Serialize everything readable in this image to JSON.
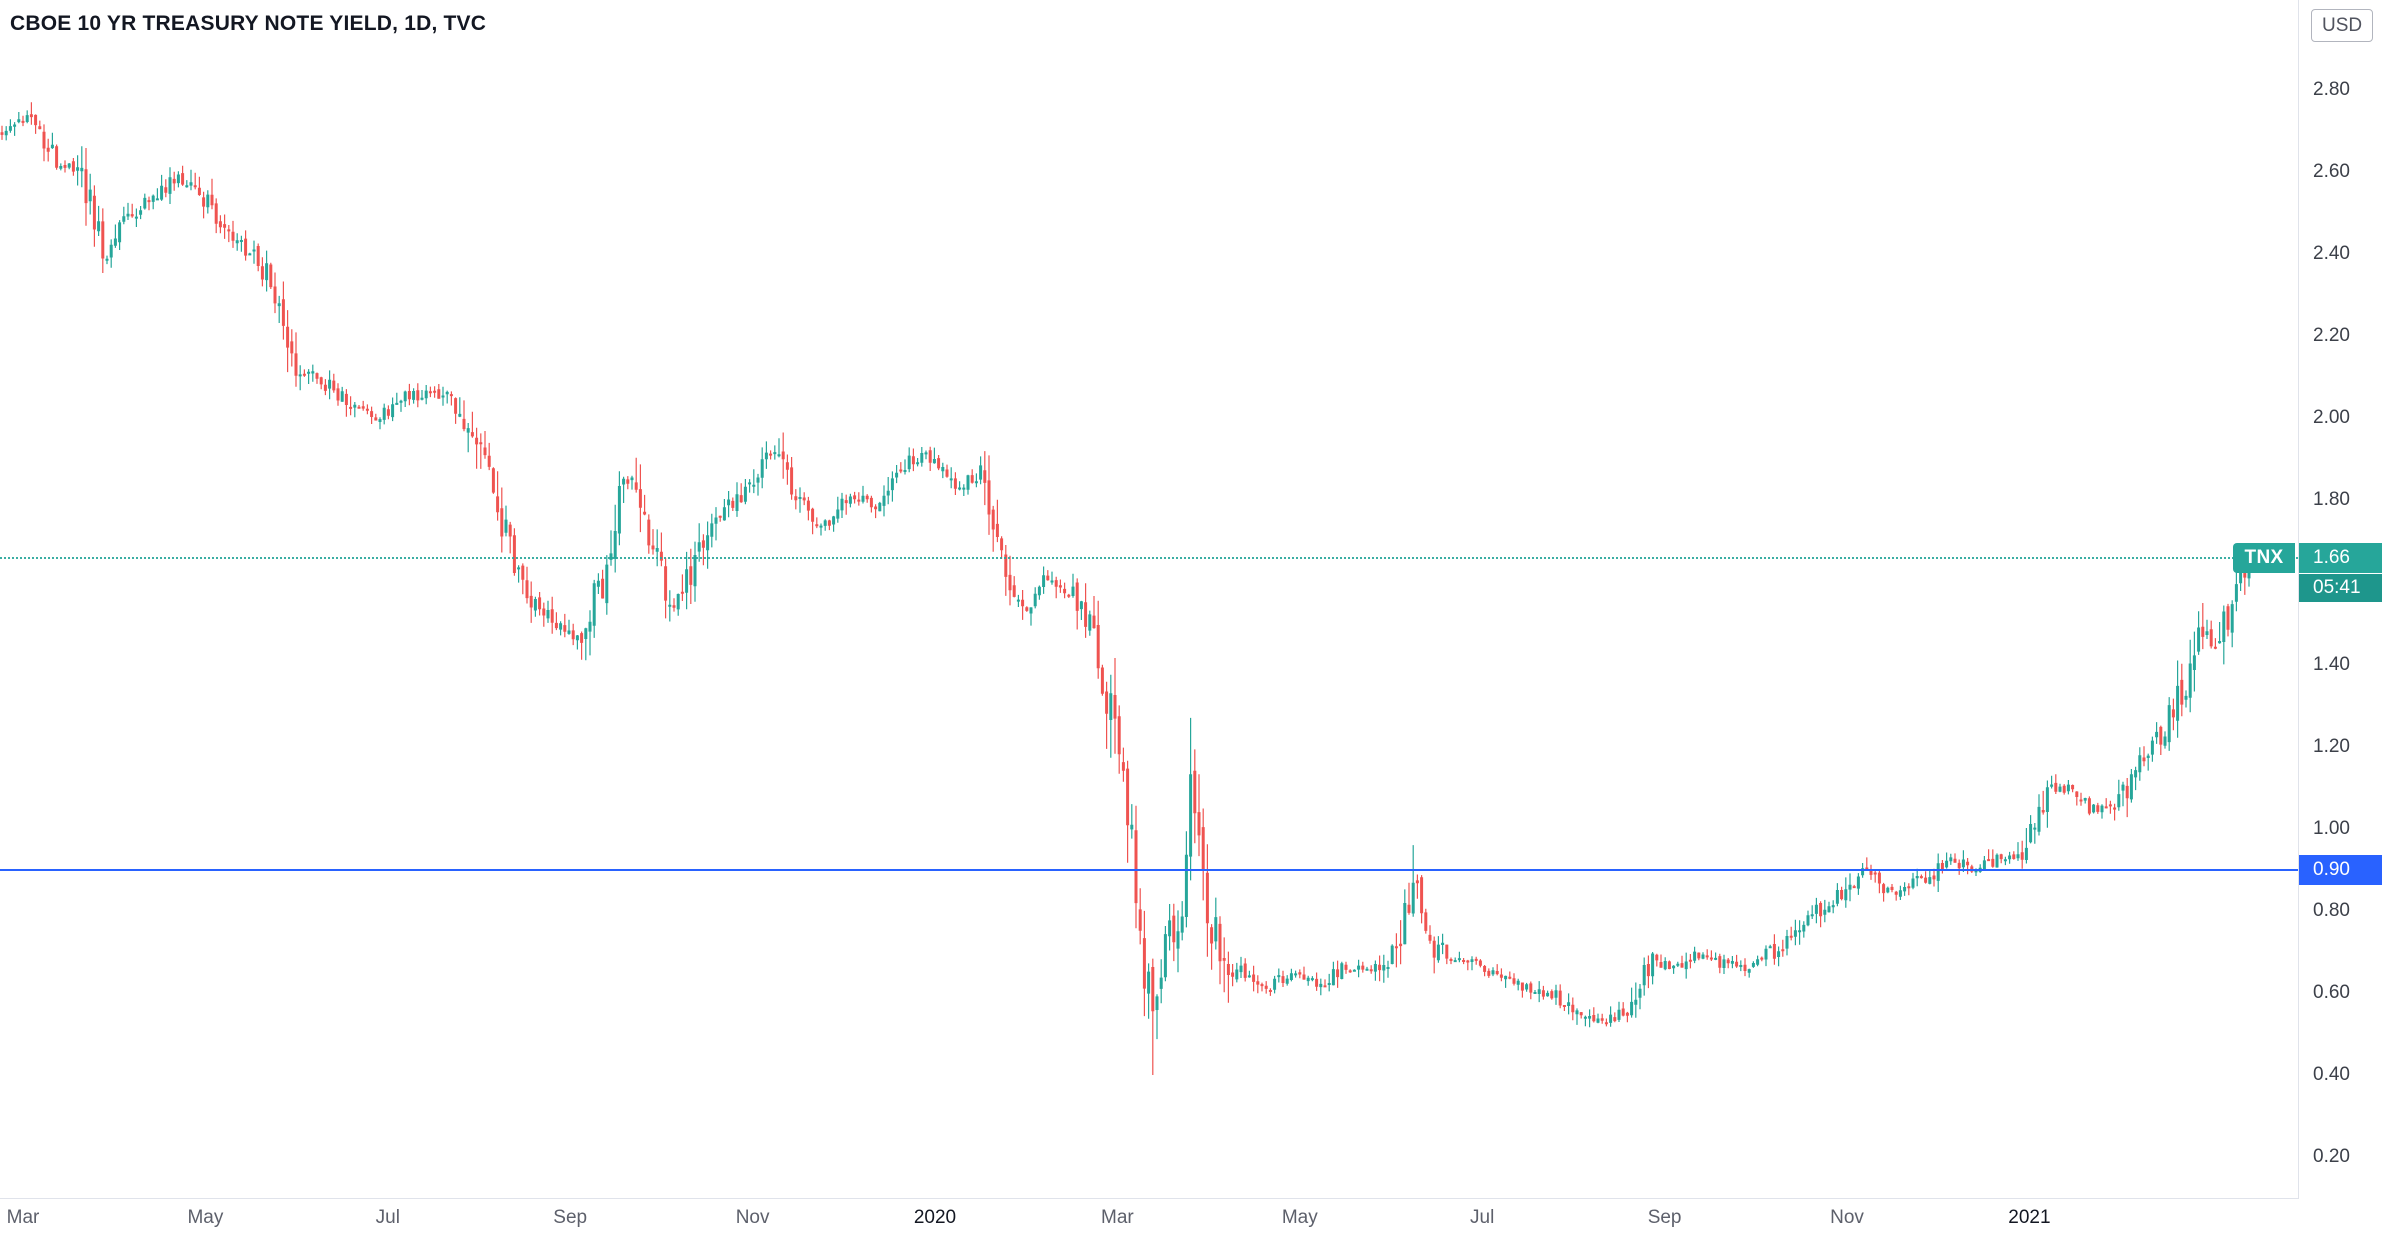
{
  "header": {
    "title": "CBOE 10 YR TREASURY NOTE YIELD, 1D, TVC",
    "currency_button": "USD"
  },
  "price_scale": {
    "symbol_label": "TNX",
    "last_price_label": "1.66",
    "countdown_label": "05:41",
    "horizontal_line_label": "0.90"
  },
  "chart_data": {
    "type": "candlestick",
    "title": "CBOE 10 YR TREASURY NOTE YIELD",
    "symbol": "TNX",
    "exchange": "TVC",
    "interval": "1D",
    "currency": "USD",
    "last_price": 1.66,
    "countdown": "05:41",
    "horizontal_line_value": 0.9,
    "grid": false,
    "y_axis": {
      "side": "right",
      "min": 0.2,
      "max": 2.8,
      "tick_step": 0.2,
      "ticks": [
        2.8,
        2.6,
        2.4,
        2.2,
        2.0,
        1.8,
        1.6,
        1.4,
        1.2,
        1.0,
        0.8,
        0.6,
        0.4,
        0.2
      ]
    },
    "x_axis": {
      "range": "Mar 2019 - Mar 2021",
      "ticks": [
        {
          "label": "Mar",
          "month": 0
        },
        {
          "label": "May",
          "month": 2
        },
        {
          "label": "Jul",
          "month": 4
        },
        {
          "label": "Sep",
          "month": 6
        },
        {
          "label": "Nov",
          "month": 8
        },
        {
          "label": "2020",
          "month": 10,
          "year": true
        },
        {
          "label": "Mar",
          "month": 12
        },
        {
          "label": "May",
          "month": 14
        },
        {
          "label": "Jul",
          "month": 16
        },
        {
          "label": "Sep",
          "month": 18
        },
        {
          "label": "Nov",
          "month": 20
        },
        {
          "label": "2021",
          "month": 22,
          "year": true
        }
      ]
    },
    "colors": {
      "up_candle": "#26a69a",
      "down_candle": "#ef5350",
      "price_label": "#26a69a",
      "countdown_label": "#1e968c",
      "horizontal_line": "#2962ff",
      "current_price_line": "#26a69a"
    },
    "series_anchor_points": {
      "units": "[months_since_Mar_2019, yield_percent]",
      "points": [
        [
          -0.2,
          2.7
        ],
        [
          0.1,
          2.75
        ],
        [
          0.35,
          2.63
        ],
        [
          0.6,
          2.61
        ],
        [
          0.9,
          2.39
        ],
        [
          1.1,
          2.48
        ],
        [
          1.4,
          2.53
        ],
        [
          1.7,
          2.59
        ],
        [
          1.9,
          2.56
        ],
        [
          2.2,
          2.45
        ],
        [
          2.5,
          2.4
        ],
        [
          2.8,
          2.31
        ],
        [
          3.0,
          2.13
        ],
        [
          3.3,
          2.09
        ],
        [
          3.6,
          2.03
        ],
        [
          3.9,
          2.0
        ],
        [
          4.2,
          2.05
        ],
        [
          4.5,
          2.07
        ],
        [
          4.75,
          2.04
        ],
        [
          5.05,
          1.88
        ],
        [
          5.25,
          1.73
        ],
        [
          5.5,
          1.58
        ],
        [
          5.8,
          1.5
        ],
        [
          6.1,
          1.45
        ],
        [
          6.4,
          1.64
        ],
        [
          6.6,
          1.87
        ],
        [
          6.9,
          1.7
        ],
        [
          7.15,
          1.54
        ],
        [
          7.4,
          1.66
        ],
        [
          7.7,
          1.78
        ],
        [
          8.0,
          1.85
        ],
        [
          8.2,
          1.92
        ],
        [
          8.5,
          1.8
        ],
        [
          8.8,
          1.74
        ],
        [
          9.1,
          1.81
        ],
        [
          9.35,
          1.77
        ],
        [
          9.65,
          1.89
        ],
        [
          9.95,
          1.91
        ],
        [
          10.2,
          1.83
        ],
        [
          10.5,
          1.86
        ],
        [
          10.8,
          1.64
        ],
        [
          11.0,
          1.54
        ],
        [
          11.2,
          1.62
        ],
        [
          11.5,
          1.57
        ],
        [
          11.75,
          1.46
        ],
        [
          11.95,
          1.27
        ],
        [
          12.1,
          1.08
        ],
        [
          12.25,
          0.74
        ],
        [
          12.4,
          0.54
        ],
        [
          12.55,
          0.83
        ],
        [
          12.68,
          0.72
        ],
        [
          12.8,
          1.08
        ],
        [
          12.95,
          0.83
        ],
        [
          13.1,
          0.75
        ],
        [
          13.3,
          0.65
        ],
        [
          13.6,
          0.61
        ],
        [
          13.9,
          0.64
        ],
        [
          14.2,
          0.62
        ],
        [
          14.5,
          0.67
        ],
        [
          14.8,
          0.65
        ],
        [
          15.05,
          0.7
        ],
        [
          15.25,
          0.88
        ],
        [
          15.45,
          0.72
        ],
        [
          15.7,
          0.69
        ],
        [
          16.0,
          0.66
        ],
        [
          16.3,
          0.63
        ],
        [
          16.6,
          0.61
        ],
        [
          16.9,
          0.58
        ],
        [
          17.15,
          0.54
        ],
        [
          17.35,
          0.53
        ],
        [
          17.6,
          0.57
        ],
        [
          17.85,
          0.68
        ],
        [
          18.1,
          0.66
        ],
        [
          18.35,
          0.69
        ],
        [
          18.6,
          0.67
        ],
        [
          18.9,
          0.66
        ],
        [
          19.2,
          0.7
        ],
        [
          19.5,
          0.76
        ],
        [
          19.8,
          0.82
        ],
        [
          20.05,
          0.87
        ],
        [
          20.2,
          0.91
        ],
        [
          20.45,
          0.84
        ],
        [
          20.7,
          0.87
        ],
        [
          20.95,
          0.89
        ],
        [
          21.15,
          0.93
        ],
        [
          21.4,
          0.89
        ],
        [
          21.65,
          0.93
        ],
        [
          21.9,
          0.92
        ],
        [
          22.1,
          1.04
        ],
        [
          22.3,
          1.11
        ],
        [
          22.5,
          1.08
        ],
        [
          22.75,
          1.04
        ],
        [
          22.95,
          1.06
        ],
        [
          23.15,
          1.14
        ],
        [
          23.35,
          1.19
        ],
        [
          23.55,
          1.28
        ],
        [
          23.75,
          1.38
        ],
        [
          23.9,
          1.49
        ],
        [
          24.05,
          1.43
        ],
        [
          24.2,
          1.55
        ],
        [
          24.35,
          1.62
        ],
        [
          24.45,
          1.66
        ]
      ]
    },
    "extreme_spikes": [
      {
        "month": 0.1,
        "high": 2.77
      },
      {
        "month": 12.4,
        "low": 0.4
      },
      {
        "month": 12.8,
        "high": 1.27
      },
      {
        "month": 15.25,
        "high": 0.96
      },
      {
        "month": 20.2,
        "high": 0.93
      },
      {
        "month": 23.9,
        "high": 1.55
      }
    ]
  }
}
